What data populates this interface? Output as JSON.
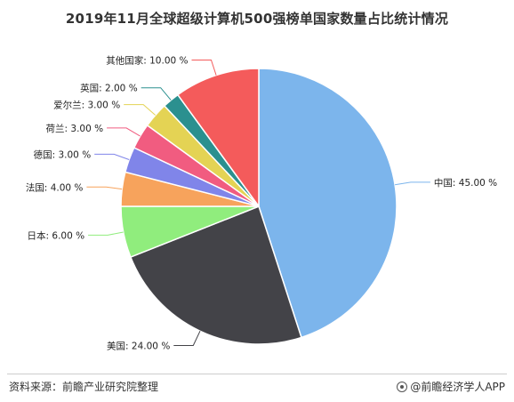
{
  "chart_data": {
    "type": "pie",
    "title": "2019年11月全球超级计算机500强榜单国家数量占比统计情况",
    "categories": [
      "中国",
      "美国",
      "日本",
      "法国",
      "德国",
      "荷兰",
      "爱尔兰",
      "英国",
      "其他国家"
    ],
    "values": [
      45.0,
      24.0,
      6.0,
      4.0,
      3.0,
      3.0,
      3.0,
      2.0,
      10.0
    ],
    "labels": [
      "中国: 45.00 %",
      "美国: 24.00 %",
      "日本: 6.00 %",
      "法国: 4.00 %",
      "德国: 3.00 %",
      "荷兰: 3.00 %",
      "爱尔兰: 3.00 %",
      "英国: 2.00 %",
      "其他国家: 10.00 %"
    ],
    "colors": [
      "#7cb5ec",
      "#434348",
      "#90ed7d",
      "#f7a35c",
      "#8085e9",
      "#f15c80",
      "#e4d354",
      "#2b908f",
      "#f45b5b"
    ],
    "start_angle_deg": 0,
    "direction": "clockwise"
  },
  "footer": {
    "source": "资料来源：前瞻产业研究院整理",
    "brand": "@前瞻经济学人APP"
  }
}
